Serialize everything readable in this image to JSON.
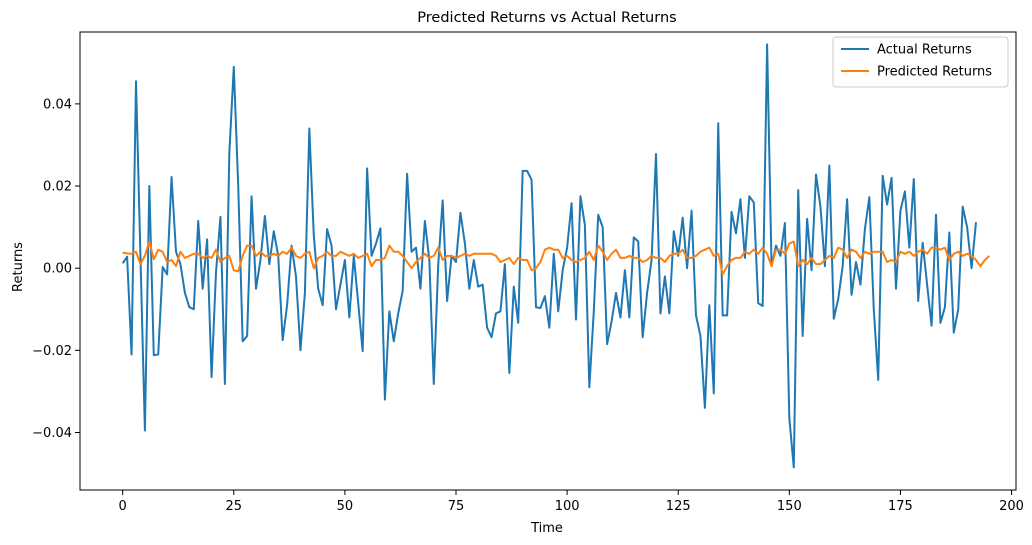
{
  "chart_data": {
    "type": "line",
    "title": "Predicted Returns vs Actual Returns",
    "xlabel": "Time",
    "ylabel": "Returns",
    "xlim": [
      -9.6,
      201
    ],
    "ylim": [
      -0.054,
      0.0575
    ],
    "x_ticks": [
      0,
      25,
      50,
      75,
      100,
      125,
      150,
      175,
      200
    ],
    "y_ticks": [
      -0.04,
      -0.02,
      0.0,
      0.02,
      0.04
    ],
    "y_tick_labels": [
      "−0.04",
      "−0.02",
      "0.00",
      "0.02",
      "0.04"
    ],
    "grid": false,
    "legend_position": "top-right",
    "series": [
      {
        "name": "Actual Returns",
        "color": "#1f77b4",
        "values": [
          0.0012,
          0.0028,
          -0.021,
          0.0455,
          0.003,
          -0.0395,
          0.02,
          -0.0212,
          -0.021,
          0.0003,
          -0.0015,
          0.0222,
          0.004,
          0.001,
          -0.006,
          -0.0095,
          -0.01,
          0.0115,
          -0.005,
          0.007,
          -0.0265,
          -0.001,
          0.0125,
          -0.0282,
          0.028,
          0.049,
          0.02,
          -0.0178,
          -0.0165,
          0.0175,
          -0.005,
          0.002,
          0.0127,
          0.001,
          0.009,
          0.003,
          -0.0175,
          -0.009,
          0.0055,
          -0.002,
          -0.02,
          -0.006,
          0.034,
          0.008,
          -0.005,
          -0.009,
          0.0095,
          0.0055,
          -0.01,
          -0.004,
          0.002,
          -0.012,
          0.003,
          -0.0085,
          -0.0202,
          0.0243,
          0.003,
          0.006,
          0.0097,
          -0.032,
          -0.0105,
          -0.0178,
          -0.011,
          -0.0055,
          0.023,
          0.004,
          0.005,
          -0.005,
          0.0115,
          0.002,
          -0.0282,
          0.0008,
          0.0165,
          -0.008,
          0.003,
          0.0015,
          0.0135,
          0.006,
          -0.005,
          0.002,
          -0.0045,
          -0.004,
          -0.0145,
          -0.0168,
          -0.011,
          -0.0105,
          0.001,
          -0.0255,
          -0.0045,
          -0.0133,
          0.0237,
          0.0237,
          0.0215,
          -0.0095,
          -0.0097,
          -0.0068,
          -0.0145,
          0.0035,
          -0.0105,
          -0.0005,
          0.005,
          0.0158,
          -0.0125,
          0.0175,
          0.0105,
          -0.029,
          -0.0105,
          0.013,
          0.01,
          -0.0185,
          -0.013,
          -0.006,
          -0.012,
          -0.0005,
          -0.012,
          0.0075,
          0.0065,
          -0.0168,
          -0.006,
          0.002,
          0.0278,
          -0.011,
          -0.002,
          -0.011,
          0.009,
          0.003,
          0.0123,
          0.0,
          0.014,
          -0.0115,
          -0.0165,
          -0.034,
          -0.009,
          -0.0305,
          0.0353,
          -0.0115,
          -0.0115,
          0.0137,
          0.0085,
          0.0168,
          0.0025,
          0.0175,
          0.016,
          -0.0085,
          -0.0092,
          0.0545,
          0.0005,
          0.0055,
          0.003,
          0.011,
          -0.0365,
          -0.0485,
          0.019,
          -0.0165,
          0.012,
          -0.0005,
          0.0228,
          0.015,
          0.0005,
          0.025,
          -0.0123,
          -0.0075,
          0.0005,
          0.0168,
          -0.0065,
          0.0015,
          -0.004,
          0.0095,
          0.0173,
          -0.01,
          -0.0272,
          0.0225,
          0.0155,
          0.022,
          -0.005,
          0.014,
          0.0187,
          0.005,
          0.0217,
          -0.008,
          0.0062,
          -0.004,
          -0.014,
          0.013,
          -0.0133,
          -0.0095,
          0.0087,
          -0.0157,
          -0.01,
          0.015,
          0.01,
          0.0,
          0.0112
        ]
      },
      {
        "name": "Predicted Returns",
        "color": "#ff7f0e",
        "values": [
          0.0038,
          0.0036,
          0.0035,
          0.004,
          0.001,
          0.003,
          0.0065,
          0.0022,
          0.0045,
          0.004,
          0.0015,
          0.002,
          0.0005,
          0.004,
          0.0025,
          0.003,
          0.0035,
          0.0035,
          0.0025,
          0.003,
          0.0025,
          0.0045,
          0.0015,
          0.0025,
          0.003,
          -0.0005,
          -0.0008,
          0.003,
          0.0055,
          0.0055,
          0.003,
          0.004,
          0.003,
          0.003,
          0.0035,
          0.003,
          0.004,
          0.0035,
          0.005,
          0.003,
          0.0025,
          0.0035,
          0.004,
          0.0,
          0.0025,
          0.003,
          0.004,
          0.003,
          0.003,
          0.004,
          0.0035,
          0.003,
          0.0035,
          0.0025,
          0.003,
          0.0035,
          0.0005,
          0.002,
          0.002,
          0.0025,
          0.0055,
          0.004,
          0.004,
          0.003,
          0.0015,
          0.0,
          0.0015,
          0.0025,
          0.0035,
          0.0025,
          0.003,
          0.005,
          0.002,
          0.003,
          0.003,
          0.0025,
          0.003,
          0.0035,
          0.003,
          0.0035,
          0.0035,
          0.0035,
          0.0035,
          0.0035,
          0.003,
          0.0015,
          0.002,
          0.0025,
          0.001,
          0.0025,
          0.002,
          0.002,
          -0.0005,
          0.0,
          0.0015,
          0.0045,
          0.005,
          0.0045,
          0.0045,
          0.0025,
          0.003,
          0.002,
          0.0015,
          0.002,
          0.0025,
          0.004,
          0.002,
          0.0055,
          0.004,
          0.002,
          0.0035,
          0.0045,
          0.0025,
          0.0025,
          0.003,
          0.0025,
          0.0025,
          0.0015,
          0.002,
          0.003,
          0.0025,
          0.0025,
          0.0015,
          0.003,
          0.0035,
          0.0035,
          0.0045,
          0.0025,
          0.0025,
          0.003,
          0.004,
          0.0045,
          0.005,
          0.003,
          0.0035,
          -0.0015,
          0.0005,
          0.002,
          0.0025,
          0.0025,
          0.004,
          0.0035,
          0.0045,
          0.0035,
          0.005,
          0.0035,
          0.0005,
          0.0045,
          0.0045,
          0.0035,
          0.006,
          0.0065,
          0.0005,
          0.002,
          0.001,
          0.0025,
          0.001,
          0.001,
          0.002,
          0.003,
          0.0025,
          0.005,
          0.0045,
          0.0025,
          0.0045,
          0.004,
          0.0025,
          0.004,
          0.0035,
          0.004,
          0.004,
          0.004,
          0.0015,
          0.002,
          0.0015,
          0.004,
          0.0035,
          0.004,
          0.003,
          0.004,
          0.0045,
          0.0035,
          0.005,
          0.005,
          0.0045,
          0.005,
          0.002,
          0.0035,
          0.004,
          0.003,
          0.0035,
          0.003,
          0.002,
          0.0005,
          0.002,
          0.003
        ]
      }
    ]
  }
}
